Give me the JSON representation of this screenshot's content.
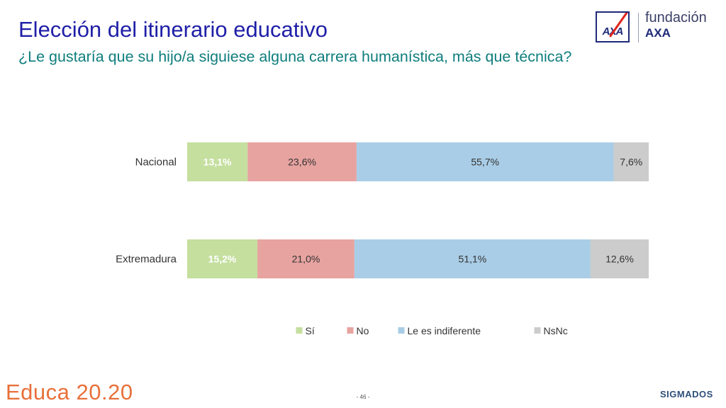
{
  "header": {
    "title": "Elección del itinerario educativo",
    "subtitle": "¿Le gustaría que su hijo/a siguiese alguna carrera humanística, más que técnica?"
  },
  "logo": {
    "line1": "fundación",
    "line2": "AXA",
    "mark_text": "AXA",
    "icon": "axa-logo-icon"
  },
  "chart_data": {
    "type": "bar",
    "orientation": "horizontal",
    "stacked": true,
    "normalized_100_percent": true,
    "categories": [
      "Nacional",
      "Extremadura"
    ],
    "series": [
      {
        "name": "Sí",
        "values": [
          13.1,
          15.2
        ],
        "labels": [
          "13,1%",
          "15,2%"
        ],
        "color": "#c5df9f",
        "label_color": "#ffffff",
        "label_bold": true
      },
      {
        "name": "No",
        "values": [
          23.6,
          21.0
        ],
        "labels": [
          "23,6%",
          "21,0%"
        ],
        "color": "#e7a3a0",
        "label_color": "#333333",
        "label_bold": false
      },
      {
        "name": "Le es indiferente",
        "values": [
          55.7,
          51.1
        ],
        "labels": [
          "55,7%",
          "51,1%"
        ],
        "color": "#a9cde6",
        "label_color": "#333333",
        "label_bold": false
      },
      {
        "name": "NsNc",
        "values": [
          7.6,
          12.6
        ],
        "labels": [
          "7,6%",
          "12,6%"
        ],
        "color": "#cccccc",
        "label_color": "#333333",
        "label_bold": false
      }
    ],
    "legend_position": "bottom",
    "grid": false
  },
  "footer": {
    "brand": "Educa 20.20",
    "page": "- 46 -",
    "partner": "SIGMADOS"
  }
}
